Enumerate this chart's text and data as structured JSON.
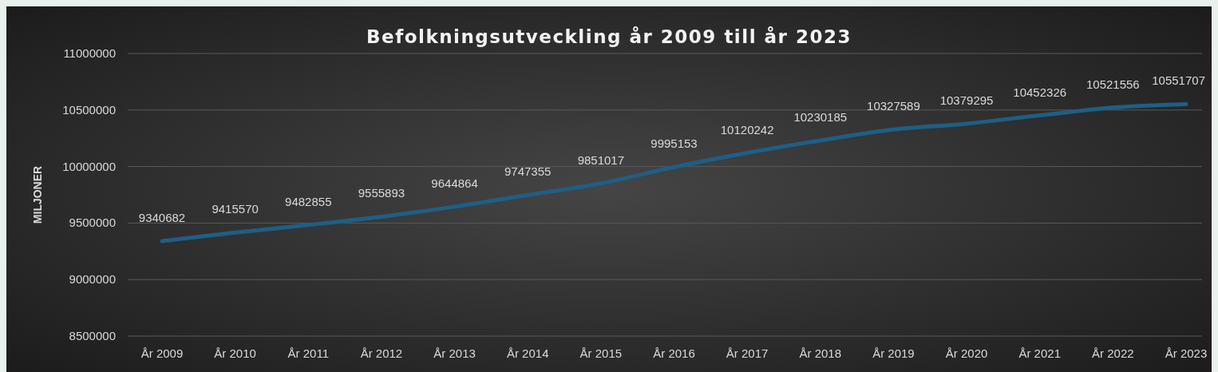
{
  "chart_data": {
    "type": "line",
    "title": "Befolkningsutveckling år 2009 till år 2023",
    "ylabel": "MILJONER",
    "categories": [
      "År 2009",
      "År 2010",
      "År 2011",
      "År 2012",
      "År 2013",
      "År 2014",
      "År 2015",
      "År 2016",
      "År 2017",
      "År 2018",
      "År 2019",
      "År 2020",
      "År 2021",
      "År 2022",
      "År 2023"
    ],
    "series": [
      {
        "color": "#1f5e85",
        "values": [
          9340682,
          9415570,
          9482855,
          9555893,
          9644864,
          9747355,
          9851017,
          9995153,
          10120242,
          10230185,
          10327589,
          10379295,
          10452326,
          10521556,
          10551707
        ]
      }
    ],
    "ylim": [
      8500000,
      11000000
    ],
    "yticks": [
      8500000,
      9000000,
      9500000,
      10000000,
      10500000,
      11000000
    ],
    "grid": "y",
    "data_labels": true,
    "marker": "none",
    "line_style": "solid"
  }
}
